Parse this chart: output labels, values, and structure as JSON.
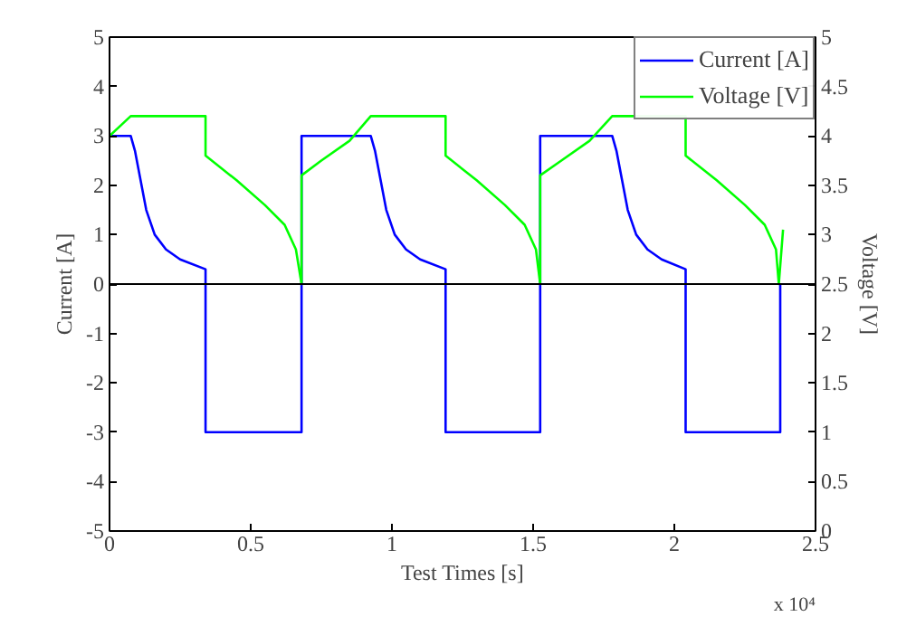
{
  "chart_data": {
    "type": "line",
    "xlabel": "Test Times [s]",
    "ylabel": "Current [A]",
    "y2label": "Voltage [V]",
    "annotations": [
      "x 10⁴"
    ],
    "xlim": [
      0,
      2.5
    ],
    "xticks": [
      0,
      0.5,
      1,
      1.5,
      2,
      2.5
    ],
    "ylim": [
      -5,
      5
    ],
    "yticks": [
      -5,
      -4,
      -3,
      -2,
      -1,
      0,
      1,
      2,
      3,
      4,
      5
    ],
    "y2lim": [
      0,
      5
    ],
    "y2ticks": [
      0,
      0.5,
      1,
      1.5,
      2,
      2.5,
      3,
      3.5,
      4,
      4.5,
      5
    ],
    "grid": false,
    "legend": "top right",
    "ref_lines": [
      {
        "axis": "y",
        "value": 0,
        "color": "#000000"
      }
    ],
    "series": [
      {
        "name": "Current [A]",
        "color": "#0000ff",
        "x": [
          0,
          0.075,
          0.09,
          0.11,
          0.13,
          0.16,
          0.2,
          0.25,
          0.34,
          0.34,
          0.68,
          0.68,
          0.925,
          0.94,
          0.96,
          0.98,
          1.01,
          1.05,
          1.1,
          1.19,
          1.19,
          1.525,
          1.525,
          1.78,
          1.795,
          1.815,
          1.835,
          1.865,
          1.905,
          1.955,
          2.04,
          2.04,
          2.375,
          2.375
        ],
        "values": [
          3,
          3,
          2.7,
          2.1,
          1.5,
          1.0,
          0.7,
          0.5,
          0.3,
          -3,
          -3,
          3,
          3,
          2.7,
          2.1,
          1.5,
          1.0,
          0.7,
          0.5,
          0.3,
          -3,
          -3,
          3,
          3,
          2.7,
          2.1,
          1.5,
          1.0,
          0.7,
          0.5,
          0.3,
          -3,
          -3,
          0
        ]
      },
      {
        "name": "Voltage [V]",
        "color": "#00ff00",
        "axis": "y2",
        "x": [
          0,
          0.075,
          0.34,
          0.34,
          0.45,
          0.55,
          0.62,
          0.66,
          0.68,
          0.68,
          0.75,
          0.85,
          0.925,
          1.19,
          1.19,
          1.3,
          1.4,
          1.47,
          1.51,
          1.525,
          1.525,
          1.6,
          1.7,
          1.78,
          2.04,
          2.04,
          2.15,
          2.25,
          2.32,
          2.36,
          2.37,
          2.385
        ],
        "values": [
          4.0,
          4.2,
          4.2,
          3.8,
          3.55,
          3.3,
          3.1,
          2.85,
          2.5,
          3.6,
          3.75,
          3.95,
          4.2,
          4.2,
          3.8,
          3.55,
          3.3,
          3.1,
          2.85,
          2.5,
          3.6,
          3.75,
          3.95,
          4.2,
          4.2,
          3.8,
          3.55,
          3.3,
          3.1,
          2.85,
          2.5,
          3.05
        ]
      }
    ]
  }
}
